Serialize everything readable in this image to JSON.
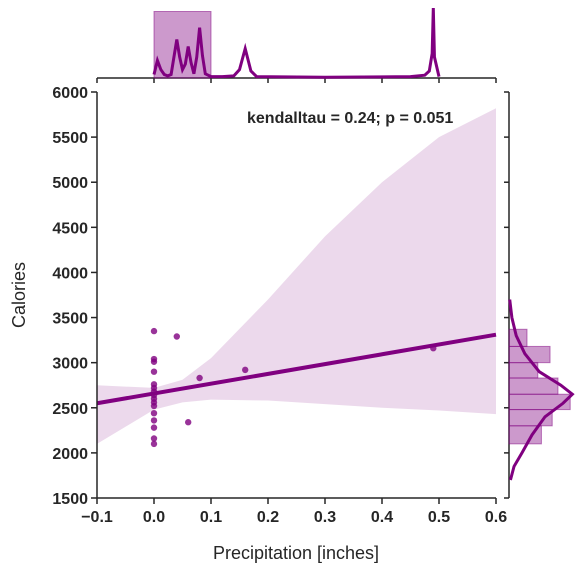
{
  "chart_data": {
    "type": "scatter",
    "kind": "jointplot",
    "xlabel": "Precipitation [inches]",
    "ylabel": "Calories",
    "xlim": [
      -0.1,
      0.6
    ],
    "ylim": [
      1500,
      6000
    ],
    "xticks": [
      "−0.1",
      "0.0",
      "0.1",
      "0.2",
      "0.3",
      "0.4",
      "0.5",
      "0.6"
    ],
    "xtick_values": [
      -0.1,
      0.0,
      0.1,
      0.2,
      0.3,
      0.4,
      0.5,
      0.6
    ],
    "yticks": [
      "1500",
      "2000",
      "2500",
      "3000",
      "3500",
      "4000",
      "4500",
      "5000",
      "5500",
      "6000"
    ],
    "ytick_values": [
      1500,
      2000,
      2500,
      3000,
      3500,
      4000,
      4500,
      5000,
      5500,
      6000
    ],
    "annotation": "kendalltau = 0.24; p = 0.051",
    "color": "#800080",
    "points": [
      {
        "x": 0.0,
        "y": 3350
      },
      {
        "x": 0.0,
        "y": 3040
      },
      {
        "x": 0.0,
        "y": 3010
      },
      {
        "x": 0.0,
        "y": 2900
      },
      {
        "x": 0.0,
        "y": 2760
      },
      {
        "x": 0.0,
        "y": 2720
      },
      {
        "x": 0.0,
        "y": 2680
      },
      {
        "x": 0.0,
        "y": 2640
      },
      {
        "x": 0.0,
        "y": 2600
      },
      {
        "x": 0.0,
        "y": 2560
      },
      {
        "x": 0.0,
        "y": 2520
      },
      {
        "x": 0.0,
        "y": 2440
      },
      {
        "x": 0.0,
        "y": 2360
      },
      {
        "x": 0.0,
        "y": 2280
      },
      {
        "x": 0.0,
        "y": 2160
      },
      {
        "x": 0.0,
        "y": 2100
      },
      {
        "x": 0.04,
        "y": 3290
      },
      {
        "x": 0.06,
        "y": 2340
      },
      {
        "x": 0.08,
        "y": 2830
      },
      {
        "x": 0.16,
        "y": 2920
      },
      {
        "x": 0.49,
        "y": 3160
      }
    ],
    "regression": {
      "x": [
        -0.1,
        0.6
      ],
      "y": [
        2550,
        3310
      ],
      "ci_upper": [
        [
          -0.1,
          2750
        ],
        [
          0.0,
          2720
        ],
        [
          0.05,
          2810
        ],
        [
          0.1,
          3050
        ],
        [
          0.2,
          3700
        ],
        [
          0.3,
          4400
        ],
        [
          0.4,
          5000
        ],
        [
          0.5,
          5500
        ],
        [
          0.6,
          5820
        ]
      ],
      "ci_lower": [
        [
          -0.1,
          2100
        ],
        [
          0.0,
          2480
        ],
        [
          0.05,
          2560
        ],
        [
          0.1,
          2590
        ],
        [
          0.2,
          2580
        ],
        [
          0.3,
          2540
        ],
        [
          0.4,
          2500
        ],
        [
          0.5,
          2470
        ],
        [
          0.6,
          2430
        ]
      ]
    },
    "top_marginal": {
      "hist_bins": [
        [
          0.0,
          0.1,
          0.95
        ]
      ],
      "kde": [
        [
          0.0,
          0.05
        ],
        [
          0.006,
          0.25
        ],
        [
          0.012,
          0.12
        ],
        [
          0.018,
          0.05
        ],
        [
          0.024,
          0.03
        ],
        [
          0.03,
          0.05
        ],
        [
          0.035,
          0.3
        ],
        [
          0.04,
          0.55
        ],
        [
          0.045,
          0.3
        ],
        [
          0.05,
          0.12
        ],
        [
          0.055,
          0.2
        ],
        [
          0.06,
          0.45
        ],
        [
          0.065,
          0.22
        ],
        [
          0.07,
          0.06
        ],
        [
          0.075,
          0.3
        ],
        [
          0.08,
          0.72
        ],
        [
          0.085,
          0.32
        ],
        [
          0.09,
          0.06
        ],
        [
          0.1,
          0.02
        ],
        [
          0.12,
          0.02
        ],
        [
          0.14,
          0.03
        ],
        [
          0.15,
          0.12
        ],
        [
          0.16,
          0.42
        ],
        [
          0.17,
          0.1
        ],
        [
          0.18,
          0.02
        ],
        [
          0.3,
          0.01
        ],
        [
          0.45,
          0.02
        ],
        [
          0.475,
          0.04
        ],
        [
          0.483,
          0.1
        ],
        [
          0.488,
          0.35
        ],
        [
          0.49,
          1.0
        ],
        [
          0.492,
          0.3
        ],
        [
          0.5,
          0.02
        ]
      ]
    },
    "right_marginal": {
      "hist_bins": [
        [
          2100,
          2300,
          0.45
        ],
        [
          2300,
          2480,
          0.6
        ],
        [
          2480,
          2650,
          0.85
        ],
        [
          2650,
          2830,
          0.68
        ],
        [
          2830,
          3000,
          0.4
        ],
        [
          3000,
          3180,
          0.57
        ],
        [
          3180,
          3370,
          0.25
        ]
      ],
      "kde": [
        [
          1700,
          0.02
        ],
        [
          1850,
          0.07
        ],
        [
          2000,
          0.18
        ],
        [
          2200,
          0.32
        ],
        [
          2400,
          0.5
        ],
        [
          2550,
          0.75
        ],
        [
          2650,
          0.88
        ],
        [
          2750,
          0.72
        ],
        [
          2900,
          0.42
        ],
        [
          3100,
          0.22
        ],
        [
          3300,
          0.1
        ],
        [
          3500,
          0.04
        ],
        [
          3700,
          0.01
        ]
      ]
    }
  }
}
